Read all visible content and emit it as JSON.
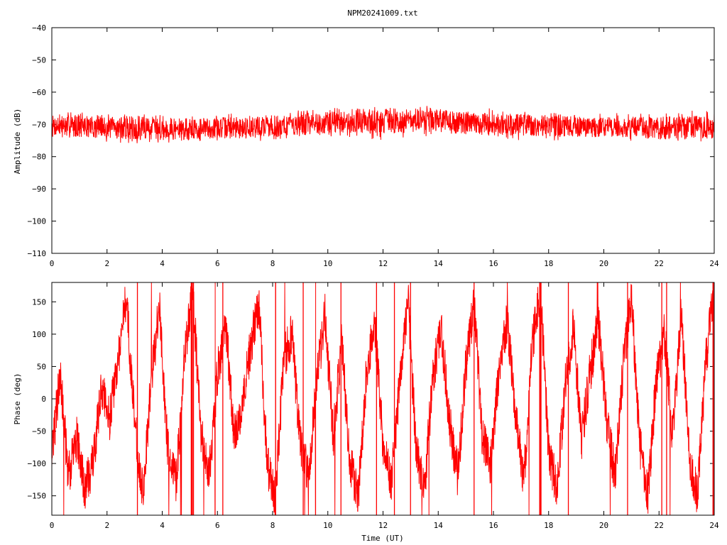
{
  "title": "NPM20241009.txt",
  "chart_data": [
    {
      "type": "line",
      "ylabel": "Amplitude (dB)",
      "xlabel": "",
      "xlim": [
        0,
        24
      ],
      "ylim": [
        -110,
        -40
      ],
      "xticks": [
        0,
        2,
        4,
        6,
        8,
        10,
        12,
        14,
        16,
        18,
        20,
        22,
        24
      ],
      "yticks": [
        -110,
        -100,
        -90,
        -80,
        -70,
        -60,
        -50,
        -40
      ],
      "ytick_labels": [
        "−110",
        "−100",
        "−90",
        "−80",
        "−70",
        "−60",
        "−50",
        "−40"
      ],
      "color": "#ff0000",
      "series": [
        {
          "x": [
            0,
            1,
            2,
            3,
            4,
            5,
            6,
            7,
            8,
            9,
            10,
            11,
            12,
            13,
            14,
            15,
            16,
            17,
            18,
            19,
            20,
            21,
            22,
            23,
            24
          ],
          "mean": [
            -70.5,
            -70.5,
            -71,
            -71,
            -71.5,
            -71.5,
            -71,
            -71,
            -70.5,
            -70,
            -69.5,
            -69,
            -69,
            -68.8,
            -68.8,
            -69.5,
            -70,
            -70.2,
            -70.5,
            -70.8,
            -70.8,
            -71,
            -71.2,
            -71,
            -71
          ],
          "min": [
            -75,
            -75,
            -75.5,
            -76,
            -76,
            -76,
            -75.5,
            -75.5,
            -75,
            -74.5,
            -74,
            -74,
            -75,
            -74,
            -73.5,
            -74,
            -74.5,
            -75,
            -75,
            -75,
            -75,
            -75.5,
            -76,
            -75.5,
            -75.5
          ],
          "max": [
            -66,
            -66,
            -66.5,
            -66,
            -67,
            -67,
            -66.5,
            -66.5,
            -66,
            -65.5,
            -65,
            -64,
            -64.5,
            -64,
            -64,
            -64.5,
            -65,
            -66,
            -66,
            -66.5,
            -66.5,
            -66.5,
            -66.5,
            -65.5,
            -66
          ]
        }
      ]
    },
    {
      "type": "line",
      "ylabel": "Phase (deg)",
      "xlabel": "Time (UT)",
      "xlim": [
        0,
        24
      ],
      "ylim": [
        -180,
        180
      ],
      "xticks": [
        0,
        2,
        4,
        6,
        8,
        10,
        12,
        14,
        16,
        18,
        20,
        22,
        24
      ],
      "yticks": [
        -150,
        -100,
        -50,
        0,
        50,
        100,
        150
      ],
      "ytick_labels": [
        "−150",
        "−100",
        "−50",
        "0",
        "50",
        "100",
        "150"
      ],
      "color": "#ff0000",
      "series": [
        {
          "x": [
            0,
            0.3,
            0.6,
            0.9,
            1.2,
            1.5,
            1.8,
            2.1,
            2.4,
            2.7,
            3.0,
            3.3,
            3.6,
            3.9,
            4.2,
            4.5,
            4.8,
            5.1,
            5.4,
            5.7,
            6.0,
            6.3,
            6.6,
            6.9,
            7.2,
            7.5,
            7.8,
            8.1,
            8.4,
            8.7,
            9.0,
            9.3,
            9.6,
            9.9,
            10.2,
            10.5,
            10.8,
            11.1,
            11.4,
            11.7,
            12.0,
            12.3,
            12.6,
            12.9,
            13.2,
            13.5,
            13.8,
            14.1,
            14.4,
            14.7,
            15.0,
            15.3,
            15.6,
            15.9,
            16.2,
            16.5,
            16.8,
            17.1,
            17.4,
            17.7,
            18.0,
            18.3,
            18.6,
            18.9,
            19.2,
            19.5,
            19.8,
            20.1,
            20.4,
            20.7,
            21.0,
            21.3,
            21.6,
            21.9,
            22.2,
            22.5,
            22.8,
            23.1,
            23.4,
            23.7,
            24.0
          ],
          "values": [
            -90,
            40,
            -120,
            -60,
            -140,
            -100,
            20,
            -30,
            60,
            160,
            -40,
            -150,
            30,
            140,
            -80,
            -130,
            60,
            170,
            -50,
            -120,
            40,
            120,
            -60,
            -10,
            80,
            150,
            -100,
            -160,
            60,
            100,
            -70,
            -120,
            30,
            130,
            -60,
            90,
            -100,
            -150,
            40,
            120,
            -70,
            -130,
            20,
            160,
            -80,
            -140,
            30,
            110,
            -30,
            -120,
            50,
            150,
            -60,
            -100,
            40,
            120,
            -20,
            -130,
            80,
            170,
            -80,
            -140,
            20,
            110,
            -60,
            40,
            120,
            -30,
            -120,
            50,
            160,
            -70,
            -150,
            30,
            100,
            -60,
            140,
            -90,
            -150,
            60,
            170
          ]
        }
      ]
    }
  ]
}
